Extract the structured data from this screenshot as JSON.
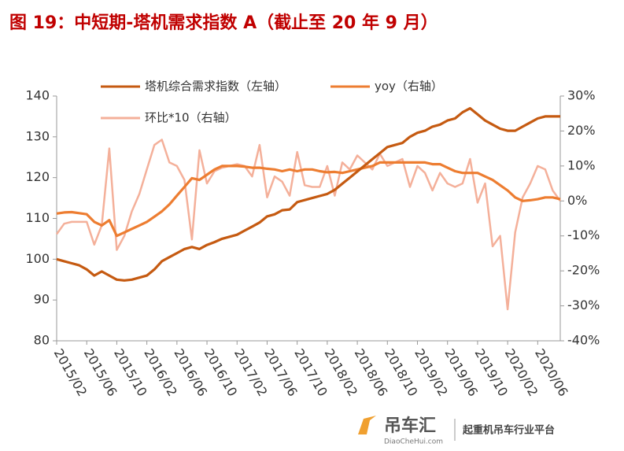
{
  "chart_data": {
    "type": "line",
    "title": "图 19：中短期-塔机需求指数 A（截止至 20 年 9 月）",
    "categories": [
      "2015/02",
      null,
      null,
      null,
      "2015/06",
      null,
      null,
      null,
      "2015/10",
      null,
      null,
      null,
      "2016/02",
      null,
      null,
      null,
      "2016/06",
      null,
      null,
      null,
      "2016/10",
      null,
      null,
      null,
      "2017/02",
      null,
      null,
      null,
      "2017/06",
      null,
      null,
      null,
      "2017/10",
      null,
      null,
      null,
      "2018/02",
      null,
      null,
      null,
      "2018/06",
      null,
      null,
      null,
      "2018/10",
      null,
      null,
      null,
      "2019/02",
      null,
      null,
      null,
      "2019/06",
      null,
      null,
      null,
      "2019/10",
      null,
      null,
      null,
      "2020/02",
      null,
      null,
      null,
      "2020/06",
      null,
      null,
      null
    ],
    "series": [
      {
        "name": "塔机综合需求指数（左轴）",
        "color": "#c55a11",
        "axis": "y",
        "values": [
          100,
          99.5,
          99,
          98.5,
          97.5,
          96,
          97,
          96,
          95,
          94.8,
          95,
          95.5,
          96,
          97.5,
          99.5,
          100.5,
          101.5,
          102.5,
          103,
          102.5,
          103.5,
          104.2,
          105,
          105.5,
          106,
          107,
          108,
          109,
          110.5,
          111,
          112,
          112.2,
          114,
          114.5,
          115,
          115.5,
          116,
          117,
          118.5,
          120,
          121.5,
          123,
          124.5,
          126,
          127.5,
          128,
          128.5,
          130,
          131,
          131.5,
          132.5,
          133,
          134,
          134.5,
          136,
          137,
          135.5,
          134,
          133,
          132,
          131.5,
          131.5,
          132.5,
          133.5,
          134.5,
          135,
          135,
          135
        ]
      },
      {
        "name": "yoy（右轴）",
        "color": "#ed7d31",
        "axis": "y2",
        "values": [
          -3.6,
          -3.3,
          -3.2,
          -3.5,
          -3.8,
          -6,
          -7,
          -5.5,
          -10,
          -9,
          -8,
          -7,
          -6,
          -4.5,
          -3,
          -1,
          1.5,
          4,
          6.5,
          6,
          7.5,
          9,
          10,
          10,
          10,
          9.8,
          9.5,
          9.5,
          9.2,
          9,
          8.5,
          9,
          8.5,
          9,
          9,
          8.5,
          8.2,
          8.3,
          8,
          8.5,
          9,
          9.5,
          10,
          11,
          11,
          11,
          11,
          11,
          11,
          11,
          10.5,
          10.5,
          9.5,
          8.5,
          8,
          8,
          8,
          7,
          6,
          4.5,
          3,
          1,
          0,
          0.2,
          0.5,
          1,
          1,
          0.5
        ]
      },
      {
        "name": "环比*10（右轴）",
        "color": "#f4b09a",
        "axis": "y2",
        "values": [
          -9.5,
          -6.5,
          -6,
          -6,
          -6,
          -12.5,
          -7,
          15,
          -14,
          -10,
          -3,
          2,
          9,
          16,
          17.5,
          11,
          10,
          6,
          -11,
          14.5,
          5,
          8.5,
          9.5,
          10,
          10.5,
          10,
          7,
          16,
          1,
          7,
          5.5,
          1.5,
          14,
          4.5,
          4,
          4,
          10,
          1.5,
          11,
          9,
          13,
          11,
          9,
          13.5,
          10,
          11,
          12,
          4,
          10,
          8,
          3,
          8,
          5,
          4,
          5,
          12,
          -0.5,
          5,
          -13,
          -10,
          -31,
          -9,
          1,
          5,
          10,
          9,
          3,
          0
        ]
      }
    ],
    "ylim": [
      80,
      140
    ],
    "yticks": [
      80,
      90,
      100,
      110,
      120,
      130,
      140
    ],
    "y2lim": [
      -40,
      30
    ],
    "y2ticks": [
      {
        "value": -40,
        "label": "-40%"
      },
      {
        "value": -30,
        "label": "-30%"
      },
      {
        "value": -20,
        "label": "-20%"
      },
      {
        "value": -10,
        "label": "-10%"
      },
      {
        "value": 0,
        "label": "0%"
      },
      {
        "value": 10,
        "label": "10%"
      },
      {
        "value": 20,
        "label": "20%"
      },
      {
        "value": 30,
        "label": "30%"
      }
    ],
    "grid": false
  },
  "logo": {
    "name": "吊车汇",
    "site": "DiaoCheHui.com",
    "slogan": "起重机吊车行业平台"
  }
}
